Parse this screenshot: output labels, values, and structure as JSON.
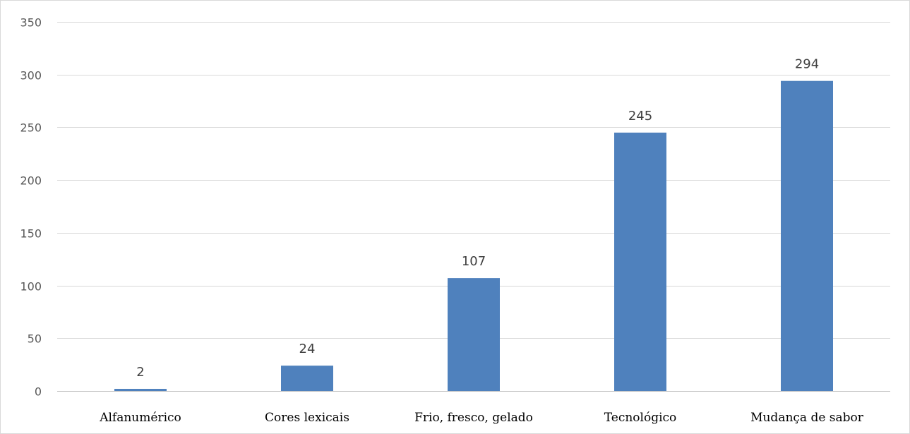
{
  "chart_data": {
    "type": "bar",
    "categories": [
      "Alfanumérico",
      "Cores lexicais",
      "Frio, fresco, gelado",
      "Tecnológico",
      "Mudança de sabor"
    ],
    "values": [
      2,
      24,
      107,
      245,
      294
    ],
    "data_labels": [
      "2",
      "24",
      "107",
      "245",
      "294"
    ],
    "title": "",
    "xlabel": "",
    "ylabel": "",
    "ylim": [
      0,
      350
    ],
    "yticks": [
      0,
      50,
      100,
      150,
      200,
      250,
      300,
      350
    ],
    "grid": true,
    "legend": "none",
    "bar_color": "#4f81bd"
  }
}
